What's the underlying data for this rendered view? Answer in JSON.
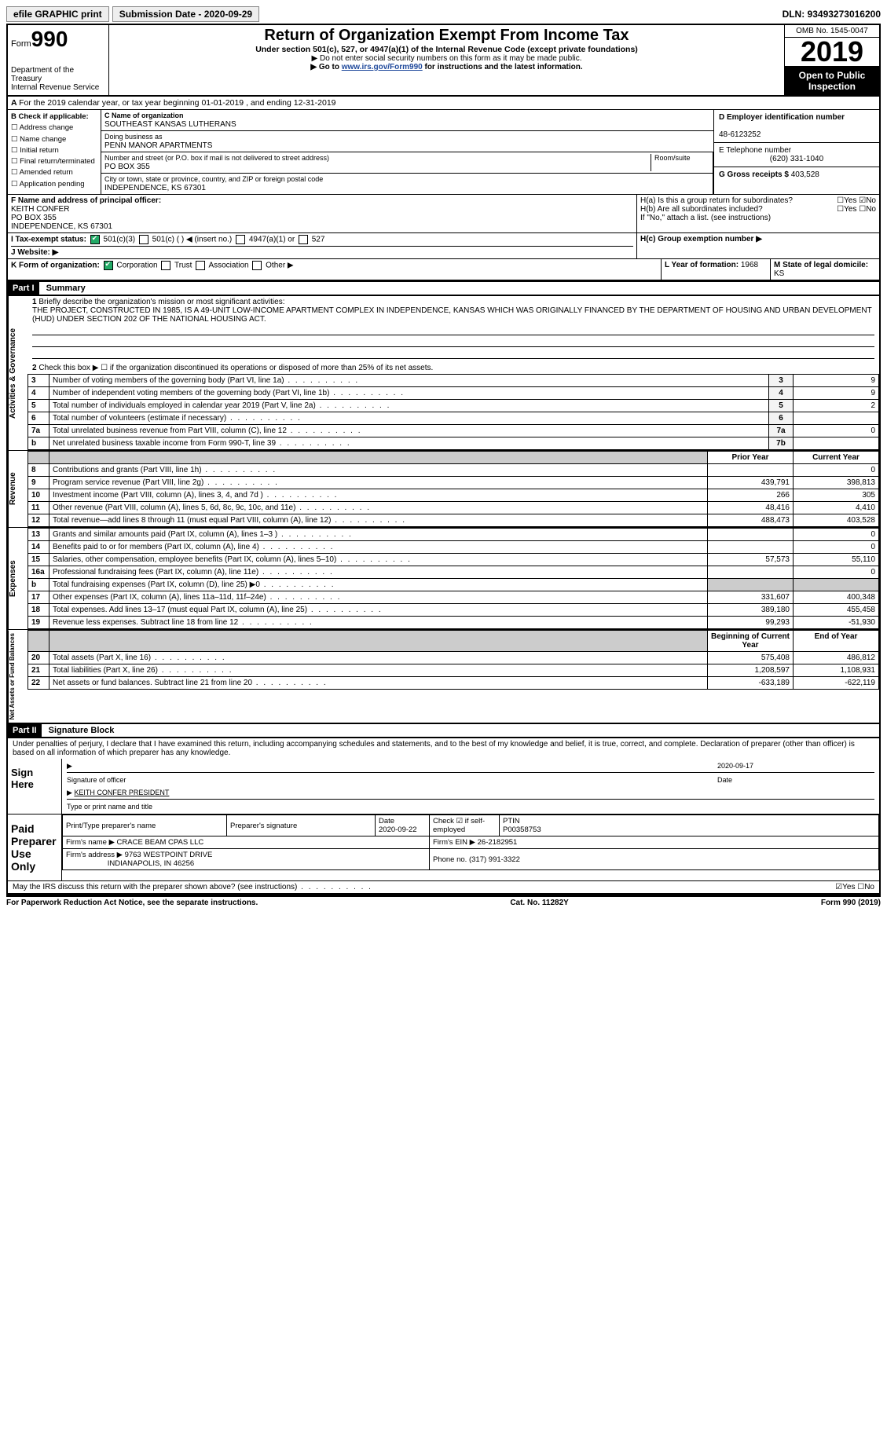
{
  "topbar": {
    "efile": "efile GRAPHIC print",
    "submission_label": "Submission Date - 2020-09-29",
    "dln": "DLN: 93493273016200"
  },
  "header": {
    "form_prefix": "Form",
    "form_num": "990",
    "dept": "Department of the Treasury\nInternal Revenue Service",
    "title": "Return of Organization Exempt From Income Tax",
    "subtitle": "Under section 501(c), 527, or 4947(a)(1) of the Internal Revenue Code (except private foundations)",
    "note1": "▶ Do not enter social security numbers on this form as it may be made public.",
    "note2_pre": "▶ Go to ",
    "note2_link": "www.irs.gov/Form990",
    "note2_post": " for instructions and the latest information.",
    "omb": "OMB No. 1545-0047",
    "year": "2019",
    "open": "Open to Public Inspection"
  },
  "line_a": "For the 2019 calendar year, or tax year beginning 01-01-2019   , and ending 12-31-2019",
  "box_b": {
    "title": "B Check if applicable:",
    "items": [
      "Address change",
      "Name change",
      "Initial return",
      "Final return/terminated",
      "Amended return",
      "Application pending"
    ]
  },
  "box_c": {
    "name_label": "C Name of organization",
    "name": "SOUTHEAST KANSAS LUTHERANS",
    "dba_label": "Doing business as",
    "dba": "PENN MANOR APARTMENTS",
    "addr_label": "Number and street (or P.O. box if mail is not delivered to street address)",
    "room_label": "Room/suite",
    "addr": "PO BOX 355",
    "city_label": "City or town, state or province, country, and ZIP or foreign postal code",
    "city": "INDEPENDENCE, KS  67301"
  },
  "box_d": {
    "ein_label": "D Employer identification number",
    "ein": "48-6123252",
    "tel_label": "E Telephone number",
    "tel": "(620) 331-1040",
    "gross_label": "G Gross receipts $",
    "gross": "403,528"
  },
  "box_f": {
    "label": "F Name and address of principal officer:",
    "name": "KEITH CONFER",
    "addr1": "PO BOX 355",
    "addr2": "INDEPENDENCE, KS  67301"
  },
  "box_h": {
    "ha": "H(a)  Is this a group return for subordinates?",
    "hb": "H(b)  Are all subordinates included?",
    "hb_note": "If \"No,\" attach a list. (see instructions)",
    "hc": "H(c)  Group exemption number ▶",
    "yes": "Yes",
    "no": "No"
  },
  "tax_status": {
    "label": "I  Tax-exempt status:",
    "opts": [
      "501(c)(3)",
      "501(c) (  ) ◀ (insert no.)",
      "4947(a)(1) or",
      "527"
    ]
  },
  "website": {
    "label": "J  Website: ▶"
  },
  "box_k": {
    "label": "K Form of organization:",
    "opts": [
      "Corporation",
      "Trust",
      "Association",
      "Other ▶"
    ]
  },
  "box_l": {
    "label": "L Year of formation:",
    "val": "1968"
  },
  "box_m": {
    "label": "M State of legal domicile:",
    "val": "KS"
  },
  "parts": {
    "p1": "Part I",
    "p1_title": "Summary",
    "p2": "Part II",
    "p2_title": "Signature Block"
  },
  "summary": {
    "q1": "Briefly describe the organization's mission or most significant activities:",
    "mission": "THE PROJECT, CONSTRUCTED IN 1985, IS A 49-UNIT LOW-INCOME APARTMENT COMPLEX IN INDEPENDENCE, KANSAS WHICH WAS ORIGINALLY FINANCED BY THE DEPARTMENT OF HOUSING AND URBAN DEVELOPMENT (HUD) UNDER SECTION 202 OF THE NATIONAL HOUSING ACT.",
    "q2": "Check this box ▶ ☐  if the organization discontinued its operations or disposed of more than 25% of its net assets.",
    "rows_gov": [
      {
        "n": "3",
        "t": "Number of voting members of the governing body (Part VI, line 1a)",
        "ln": "3",
        "v": "9"
      },
      {
        "n": "4",
        "t": "Number of independent voting members of the governing body (Part VI, line 1b)",
        "ln": "4",
        "v": "9"
      },
      {
        "n": "5",
        "t": "Total number of individuals employed in calendar year 2019 (Part V, line 2a)",
        "ln": "5",
        "v": "2"
      },
      {
        "n": "6",
        "t": "Total number of volunteers (estimate if necessary)",
        "ln": "6",
        "v": ""
      },
      {
        "n": "7a",
        "t": "Total unrelated business revenue from Part VIII, column (C), line 12",
        "ln": "7a",
        "v": "0"
      },
      {
        "n": "b",
        "t": "Net unrelated business taxable income from Form 990-T, line 39",
        "ln": "7b",
        "v": ""
      }
    ],
    "col_prior": "Prior Year",
    "col_curr": "Current Year",
    "rows_rev": [
      {
        "n": "8",
        "t": "Contributions and grants (Part VIII, line 1h)",
        "p": "",
        "c": "0"
      },
      {
        "n": "9",
        "t": "Program service revenue (Part VIII, line 2g)",
        "p": "439,791",
        "c": "398,813"
      },
      {
        "n": "10",
        "t": "Investment income (Part VIII, column (A), lines 3, 4, and 7d )",
        "p": "266",
        "c": "305"
      },
      {
        "n": "11",
        "t": "Other revenue (Part VIII, column (A), lines 5, 6d, 8c, 9c, 10c, and 11e)",
        "p": "48,416",
        "c": "4,410"
      },
      {
        "n": "12",
        "t": "Total revenue—add lines 8 through 11 (must equal Part VIII, column (A), line 12)",
        "p": "488,473",
        "c": "403,528"
      }
    ],
    "rows_exp": [
      {
        "n": "13",
        "t": "Grants and similar amounts paid (Part IX, column (A), lines 1–3 )",
        "p": "",
        "c": "0"
      },
      {
        "n": "14",
        "t": "Benefits paid to or for members (Part IX, column (A), line 4)",
        "p": "",
        "c": "0"
      },
      {
        "n": "15",
        "t": "Salaries, other compensation, employee benefits (Part IX, column (A), lines 5–10)",
        "p": "57,573",
        "c": "55,110"
      },
      {
        "n": "16a",
        "t": "Professional fundraising fees (Part IX, column (A), line 11e)",
        "p": "",
        "c": "0"
      },
      {
        "n": "b",
        "t": "Total fundraising expenses (Part IX, column (D), line 25) ▶0",
        "p": "GREY",
        "c": "GREY"
      },
      {
        "n": "17",
        "t": "Other expenses (Part IX, column (A), lines 11a–11d, 11f–24e)",
        "p": "331,607",
        "c": "400,348"
      },
      {
        "n": "18",
        "t": "Total expenses. Add lines 13–17 (must equal Part IX, column (A), line 25)",
        "p": "389,180",
        "c": "455,458"
      },
      {
        "n": "19",
        "t": "Revenue less expenses. Subtract line 18 from line 12",
        "p": "99,293",
        "c": "-51,930"
      }
    ],
    "col_begin": "Beginning of Current Year",
    "col_end": "End of Year",
    "rows_net": [
      {
        "n": "20",
        "t": "Total assets (Part X, line 16)",
        "p": "575,408",
        "c": "486,812"
      },
      {
        "n": "21",
        "t": "Total liabilities (Part X, line 26)",
        "p": "1,208,597",
        "c": "1,108,931"
      },
      {
        "n": "22",
        "t": "Net assets or fund balances. Subtract line 21 from line 20",
        "p": "-633,189",
        "c": "-622,119"
      }
    ],
    "vlabels": {
      "gov": "Activities & Governance",
      "rev": "Revenue",
      "exp": "Expenses",
      "net": "Net Assets or Fund Balances"
    }
  },
  "sig": {
    "decl": "Under penalties of perjury, I declare that I have examined this return, including accompanying schedules and statements, and to the best of my knowledge and belief, it is true, correct, and complete. Declaration of preparer (other than officer) is based on all information of which preparer has any knowledge.",
    "sign_here": "Sign Here",
    "sig_officer": "Signature of officer",
    "date": "Date",
    "date_val": "2020-09-17",
    "name_title": "KEITH CONFER PRESIDENT",
    "name_title_lbl": "Type or print name and title",
    "paid": "Paid Preparer Use Only",
    "prep_name_lbl": "Print/Type preparer's name",
    "prep_sig_lbl": "Preparer's signature",
    "prep_date_lbl": "Date",
    "prep_date": "2020-09-22",
    "check_if": "Check ☑ if self-employed",
    "ptin_lbl": "PTIN",
    "ptin": "P00358753",
    "firm_name_lbl": "Firm's name   ▶",
    "firm_name": "CRACE BEAM CPAS LLC",
    "firm_ein_lbl": "Firm's EIN ▶",
    "firm_ein": "26-2182951",
    "firm_addr_lbl": "Firm's address ▶",
    "firm_addr": "9763 WESTPOINT DRIVE",
    "firm_addr2": "INDIANAPOLIS, IN  46256",
    "phone_lbl": "Phone no.",
    "phone": "(317) 991-3322",
    "discuss": "May the IRS discuss this return with the preparer shown above? (see instructions)"
  },
  "footer": {
    "left": "For Paperwork Reduction Act Notice, see the separate instructions.",
    "mid": "Cat. No. 11282Y",
    "right": "Form 990 (2019)"
  }
}
